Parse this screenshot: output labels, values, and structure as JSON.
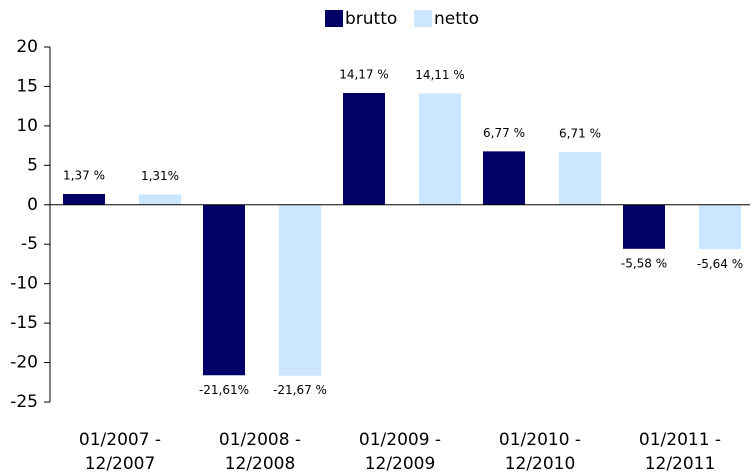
{
  "chart_data": {
    "type": "bar",
    "categories": [
      "01/2007 -\n12/2007",
      "01/2008 -\n12/2008",
      "01/2009 -\n12/2009",
      "01/2010 -\n12/2010",
      "01/2011 -\n12/2011"
    ],
    "series": [
      {
        "name": "brutto",
        "color": "#000066",
        "values": [
          1.37,
          -21.61,
          14.17,
          6.77,
          -5.58
        ],
        "value_labels": [
          "1,37 %",
          "-21,61%",
          "14,17 %",
          "6,77 %",
          "-5,58 %"
        ]
      },
      {
        "name": "netto",
        "color": "#cce6ff",
        "values": [
          1.31,
          -21.67,
          14.11,
          6.71,
          -5.64
        ],
        "value_labels": [
          "1,31%",
          "-21,67 %",
          "14,11 %",
          "6,71 %",
          "-5,64 %"
        ]
      }
    ],
    "ylim": [
      -25,
      20
    ],
    "yticks": [
      -25,
      -20,
      -15,
      -10,
      -5,
      0,
      5,
      10,
      15,
      20
    ],
    "legend": "top"
  }
}
